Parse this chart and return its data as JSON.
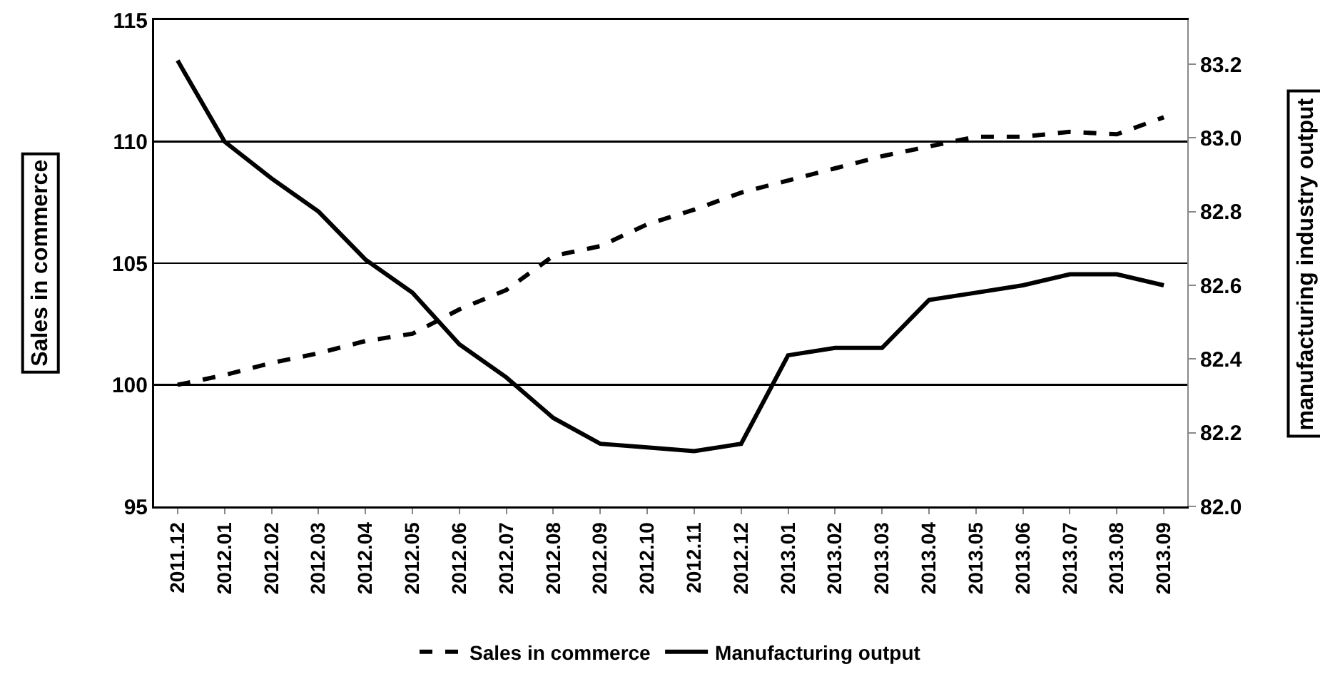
{
  "chart_data": {
    "type": "line",
    "ylabel": "Sales in commerce",
    "y2label": "manufacturing industry output",
    "categories": [
      "2011.12",
      "2012.01",
      "2012.02",
      "2012.03",
      "2012.04",
      "2012.05",
      "2012.06",
      "2012.07",
      "2012.08",
      "2012.09",
      "2012.10",
      "2012.11",
      "2012.12",
      "2013.01",
      "2013.02",
      "2013.03",
      "2013.04",
      "2013.05",
      "2013.06",
      "2013.07",
      "2013.08",
      "2013.09"
    ],
    "series": [
      {
        "name": "Sales in commerce",
        "color": "#000000",
        "line_style": "dashed",
        "values": [
          100.0,
          100.4,
          100.9,
          101.3,
          101.8,
          102.1,
          103.1,
          103.9,
          105.3,
          105.7,
          106.6,
          107.2,
          107.9,
          108.4,
          108.9,
          109.4,
          109.8,
          110.2,
          110.2,
          110.4,
          110.3,
          111.0
        ]
      },
      {
        "name": "Manufacturing output",
        "color": "#000000",
        "line_style": "solid",
        "axis": "y2",
        "values": [
          83.21,
          82.99,
          82.89,
          82.8,
          82.67,
          82.58,
          82.44,
          82.35,
          82.24,
          82.17,
          82.16,
          82.15,
          82.17,
          82.41,
          82.43,
          82.43,
          82.56,
          82.58,
          82.6,
          82.63,
          82.63,
          82.6
        ]
      }
    ],
    "ylim": [
      95,
      115
    ],
    "yticks": [
      95,
      100,
      105,
      110,
      115
    ],
    "y2lim": [
      82.0,
      83.32
    ],
    "y2ticks": [
      {
        "value": 82.0,
        "label": "82.0"
      },
      {
        "value": 82.2,
        "label": "82.2"
      },
      {
        "value": 82.4,
        "label": "82.4"
      },
      {
        "value": 82.6,
        "label": "82.6"
      },
      {
        "value": 82.8,
        "label": "82.8"
      },
      {
        "value": 83.0,
        "label": "83.0"
      },
      {
        "value": 83.2,
        "label": "83.2"
      }
    ],
    "grid": "y",
    "legend": "bottom",
    "marker": "none"
  }
}
